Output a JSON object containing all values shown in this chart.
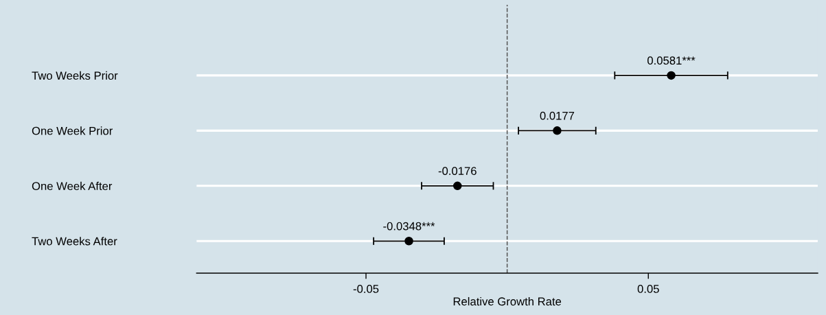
{
  "chart_data": {
    "type": "scatter",
    "orientation": "horizontal",
    "xlabel": "Relative Growth Rate",
    "categories": [
      "Two Weeks Prior",
      "One Week Prior",
      "One Week After",
      "Two Weeks After"
    ],
    "values": [
      0.0581,
      0.0177,
      -0.0176,
      -0.0348
    ],
    "errors": [
      0.02,
      0.0137,
      0.0127,
      0.0125
    ],
    "value_labels": [
      "0.0581***",
      "0.0177",
      "-0.0176",
      "-0.0348***"
    ],
    "color": "#000000",
    "marker": "circle",
    "xlim": [
      -0.11,
      0.11
    ],
    "xticks": [
      {
        "value": -0.05,
        "label": "-0.05"
      },
      {
        "value": 0.05,
        "label": "0.05"
      }
    ],
    "ref_lines": [
      {
        "axis": "x",
        "value": 0,
        "color": "#555555",
        "line_style": "dashed"
      }
    ],
    "grid": "y",
    "legend": false
  }
}
